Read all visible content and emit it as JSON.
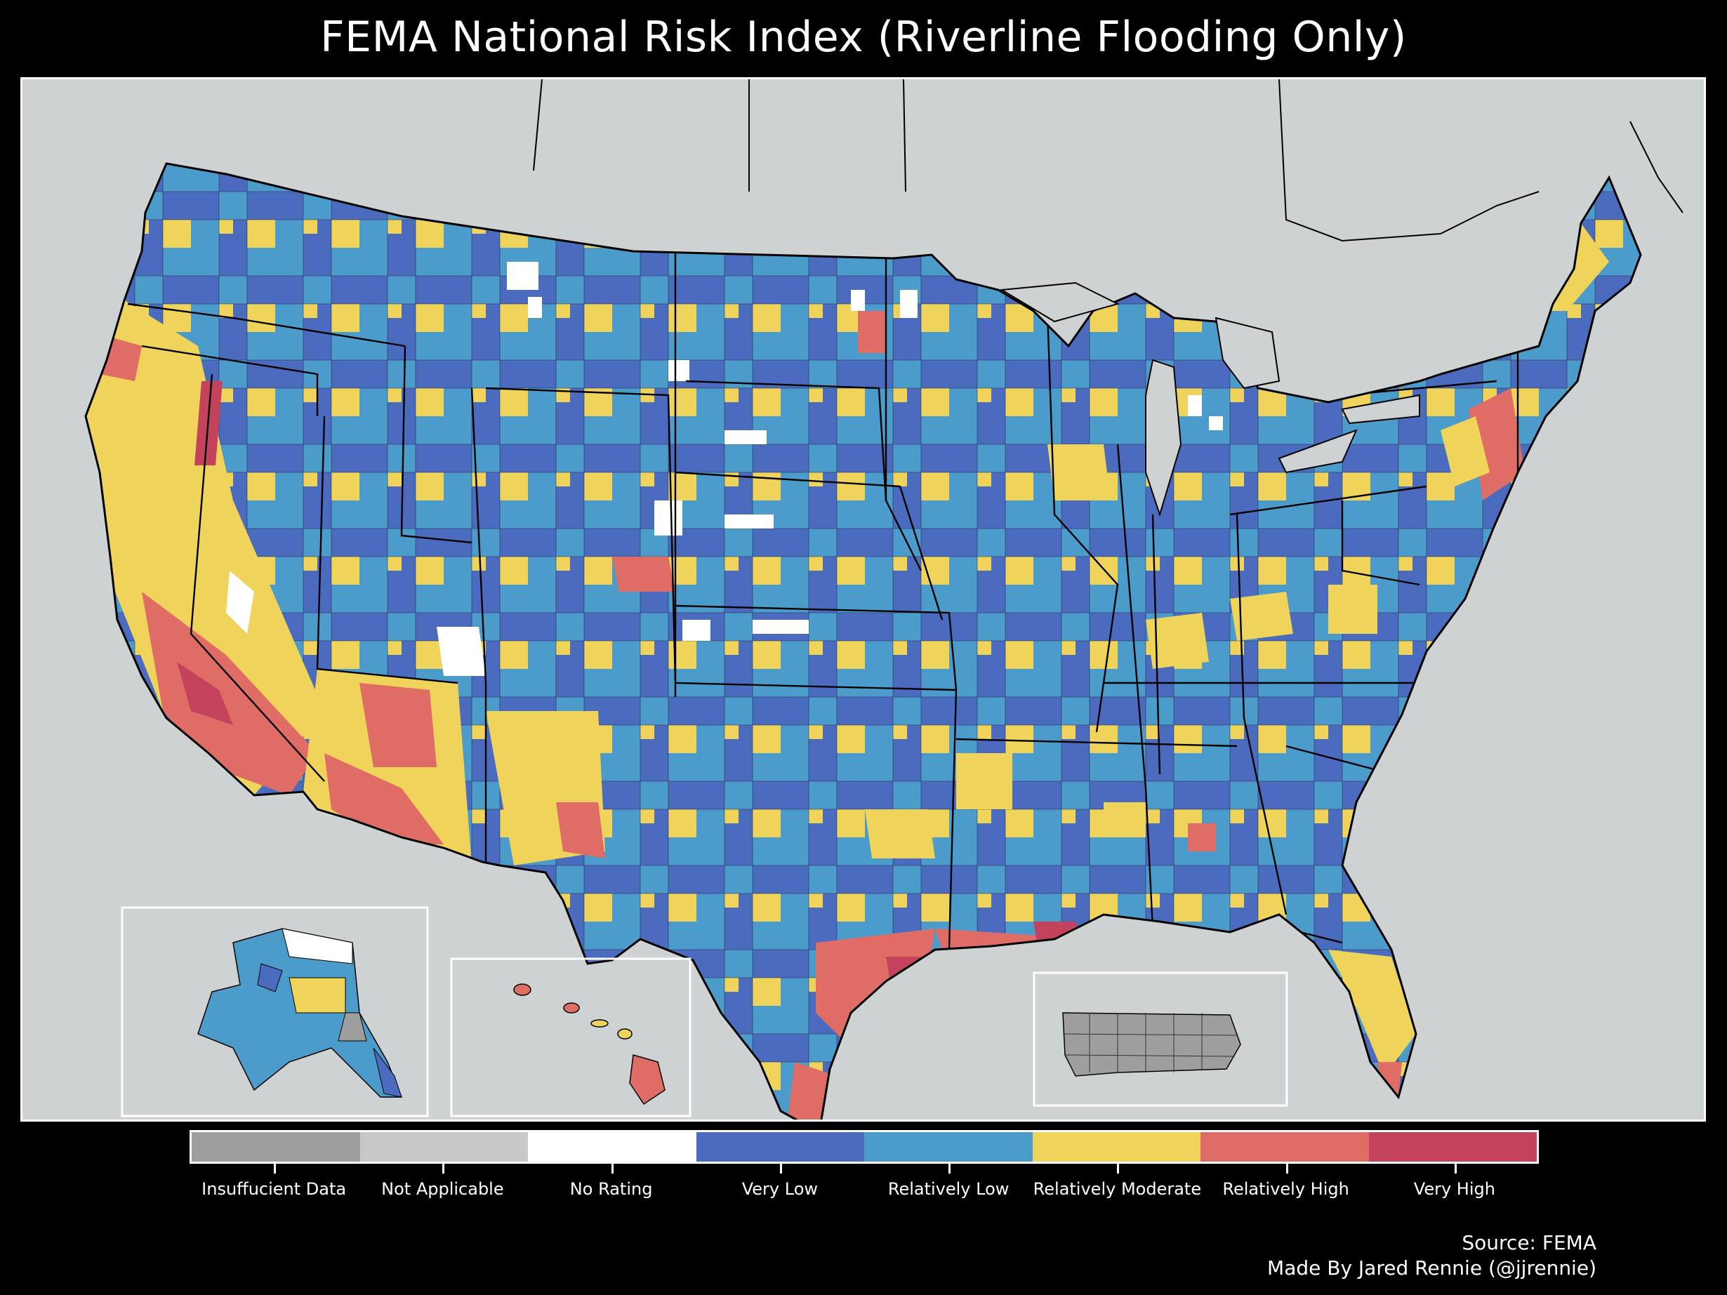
{
  "title": "FEMA National Risk Index (Riverline Flooding Only)",
  "legend": [
    {
      "label": "Insuffucient Data",
      "color": "#9e9e9e"
    },
    {
      "label": "Not Applicable",
      "color": "#c8c8c8"
    },
    {
      "label": "No Rating",
      "color": "#ffffff"
    },
    {
      "label": "Very Low",
      "color": "#4a6bbe"
    },
    {
      "label": "Relatively Low",
      "color": "#4b9bcb"
    },
    {
      "label": "Relatively Moderate",
      "color": "#efd35b"
    },
    {
      "label": "Relatively High",
      "color": "#e06d65"
    },
    {
      "label": "Very High",
      "color": "#c4435c"
    }
  ],
  "source": {
    "line1": "Source: FEMA",
    "line2": "Made By Jared Rennie (@jjrennie)"
  },
  "colors": {
    "background": "#000000",
    "ocean_land_bg": "#cfd2d2",
    "insufficient": "#9e9e9e",
    "no_rating": "#ffffff",
    "very_low": "#4a6bbe",
    "relatively_low": "#4b9bcb",
    "moderate": "#efd35b",
    "high": "#e06d65",
    "very_high": "#c4435c"
  },
  "insets": [
    "alaska",
    "hawaii",
    "puerto-rico"
  ]
}
